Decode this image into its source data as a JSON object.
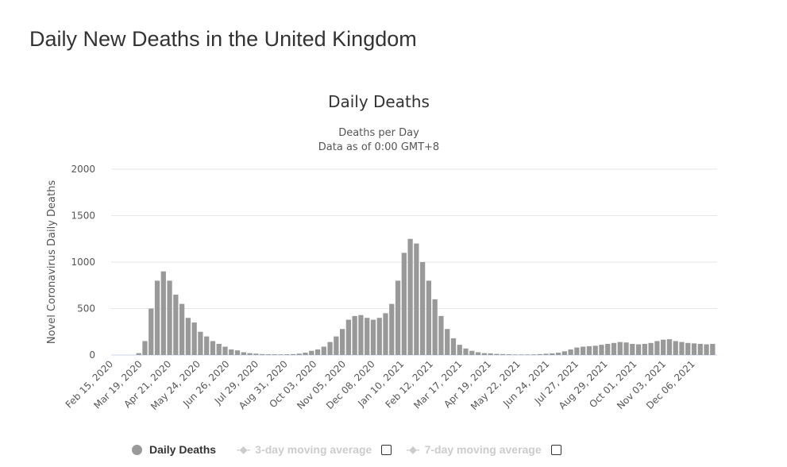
{
  "page_title": "Daily New Deaths in the United Kingdom",
  "chart_data": {
    "type": "bar",
    "title": "Daily Deaths",
    "subtitle": [
      "Deaths per Day",
      "Data as of 0:00 GMT+8"
    ],
    "ylabel": "Novel Coronavirus Daily Deaths",
    "xlabel": "",
    "ylim": [
      0,
      2000
    ],
    "yticks": [
      0,
      500,
      1000,
      1500,
      2000
    ],
    "grid": true,
    "x_start": "2020-02-15",
    "x_interval_days": 7,
    "xticks": [
      "Feb 15, 2020",
      "Mar 19, 2020",
      "Apr 21, 2020",
      "May 24, 2020",
      "Jun 26, 2020",
      "Jul 29, 2020",
      "Aug 31, 2020",
      "Oct 03, 2020",
      "Nov 05, 2020",
      "Dec 08, 2020",
      "Jan 10, 2021",
      "Feb 12, 2021",
      "Mar 17, 2021",
      "Apr 19, 2021",
      "May 22, 2021",
      "Jun 24, 2021",
      "Jul 27, 2021",
      "Aug 29, 2021",
      "Oct 01, 2021",
      "Nov 03, 2021",
      "Dec 06, 2021"
    ],
    "series": [
      {
        "name": "Daily Deaths",
        "color": "#999999",
        "values": [
          0,
          0,
          0,
          0,
          20,
          150,
          500,
          800,
          900,
          800,
          650,
          550,
          400,
          350,
          250,
          200,
          150,
          120,
          90,
          60,
          50,
          30,
          20,
          15,
          10,
          8,
          8,
          7,
          8,
          10,
          15,
          25,
          45,
          60,
          90,
          140,
          200,
          280,
          380,
          420,
          430,
          400,
          380,
          400,
          450,
          550,
          800,
          1100,
          1250,
          1200,
          1000,
          800,
          600,
          420,
          280,
          180,
          110,
          70,
          45,
          30,
          20,
          18,
          12,
          10,
          8,
          6,
          6,
          6,
          7,
          10,
          14,
          18,
          25,
          40,
          60,
          80,
          90,
          95,
          100,
          110,
          120,
          130,
          140,
          135,
          120,
          115,
          120,
          130,
          150,
          165,
          170,
          150,
          140,
          130,
          125,
          120,
          115,
          120
        ]
      }
    ],
    "legend": [
      {
        "label": "Daily Deaths",
        "active": true
      },
      {
        "label": "3-day moving average",
        "active": false
      },
      {
        "label": "7-day moving average",
        "active": false
      }
    ],
    "legend_position": "bottom"
  }
}
